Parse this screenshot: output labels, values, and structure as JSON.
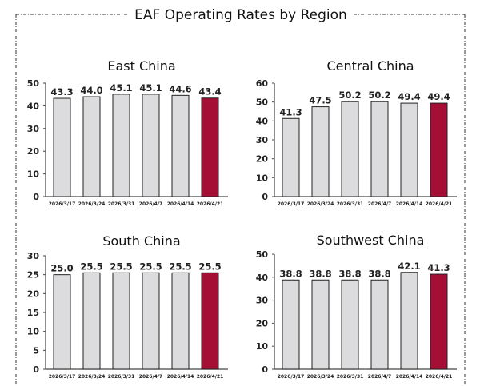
{
  "title": "EAF Operating Rates by Region",
  "colors": {
    "bar": "#dcdcdf",
    "highlight": "#a50f35",
    "outline": "#222222"
  },
  "chart_data": [
    {
      "type": "bar",
      "title": "East China",
      "categories": [
        "2026/3/17",
        "2026/3/24",
        "2026/3/31",
        "2026/4/7",
        "2026/4/14",
        "2026/4/21"
      ],
      "values": [
        43.3,
        44.0,
        45.1,
        45.1,
        44.6,
        43.4
      ],
      "ylim": [
        0,
        50
      ],
      "yticks": [
        0,
        10,
        20,
        30,
        40,
        50
      ],
      "highlight_index": 5
    },
    {
      "type": "bar",
      "title": "Central China",
      "categories": [
        "2026/3/17",
        "2026/3/24",
        "2026/3/31",
        "2026/4/7",
        "2026/4/14",
        "2026/4/21"
      ],
      "values": [
        41.3,
        47.5,
        50.2,
        50.2,
        49.4,
        49.4
      ],
      "ylim": [
        0,
        60
      ],
      "yticks": [
        0,
        10,
        20,
        30,
        40,
        50,
        60
      ],
      "highlight_index": 5
    },
    {
      "type": "bar",
      "title": "South China",
      "categories": [
        "2026/3/17",
        "2026/3/24",
        "2026/3/31",
        "2026/4/7",
        "2026/4/14",
        "2026/4/21"
      ],
      "values": [
        25.0,
        25.5,
        25.5,
        25.5,
        25.5,
        25.5
      ],
      "ylim": [
        0,
        30
      ],
      "yticks": [
        0,
        5,
        10,
        15,
        20,
        25,
        30
      ],
      "highlight_index": 5
    },
    {
      "type": "bar",
      "title": "Southwest China",
      "categories": [
        "2026/3/17",
        "2026/3/24",
        "2026/3/31",
        "2026/4/7",
        "2026/4/14",
        "2026/4/21"
      ],
      "values": [
        38.8,
        38.8,
        38.8,
        38.8,
        42.1,
        41.3
      ],
      "ylim": [
        0,
        50
      ],
      "yticks": [
        0,
        10,
        20,
        30,
        40,
        50
      ],
      "highlight_index": 5
    }
  ]
}
